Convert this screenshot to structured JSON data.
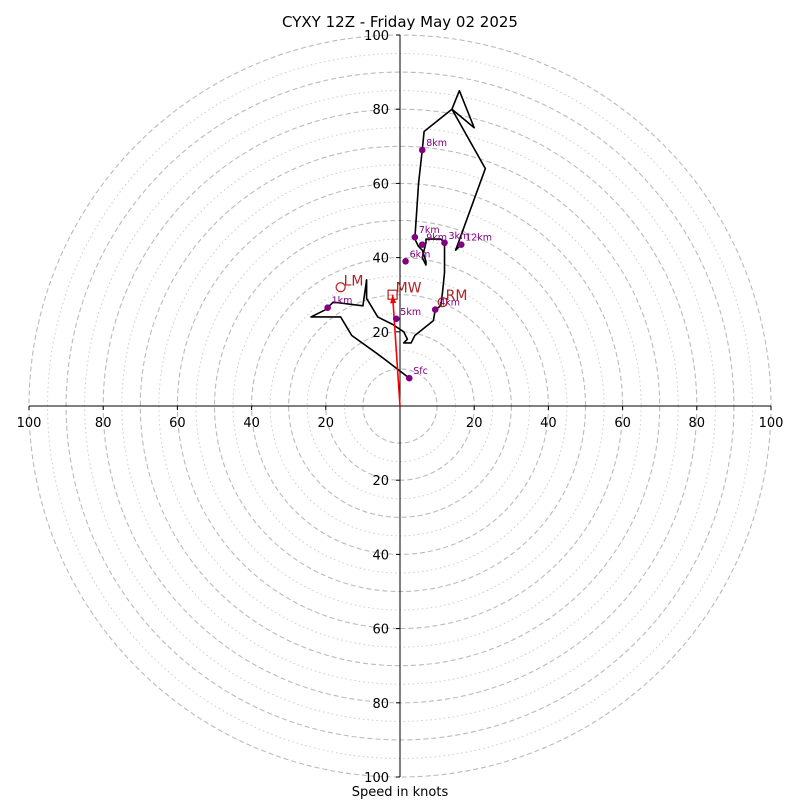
{
  "chart_data": {
    "type": "hodograph",
    "title": "CYXY 12Z - Friday May 02 2025",
    "xlabel": "Speed in knots",
    "range_max": 100,
    "dashed_ring_speeds": [
      10,
      20,
      30,
      40,
      50,
      60,
      70,
      80,
      90,
      100
    ],
    "dotted_ring_speeds": [
      15,
      25,
      35,
      45,
      55,
      65,
      75,
      85,
      95
    ],
    "x_tick_labels": [
      "100",
      "80",
      "60",
      "40",
      "20",
      "20",
      "40",
      "60",
      "80",
      "100"
    ],
    "x_tick_values": [
      -100,
      -80,
      -60,
      -40,
      -20,
      20,
      40,
      60,
      80,
      100
    ],
    "y_tick_labels": [
      "100",
      "80",
      "60",
      "40",
      "20",
      "20",
      "40",
      "60",
      "80",
      "100"
    ],
    "y_tick_values": [
      100,
      80,
      60,
      40,
      20,
      -20,
      -40,
      -60,
      -80,
      -100
    ],
    "units": "knots",
    "hodograph_trace": [
      [
        2.5,
        7.5
      ],
      [
        -6,
        14
      ],
      [
        -13,
        19
      ],
      [
        -16,
        24
      ],
      [
        -24,
        24
      ],
      [
        -20,
        26
      ],
      [
        -18,
        28
      ],
      [
        -10,
        27
      ],
      [
        -9,
        34
      ],
      [
        -9,
        29
      ],
      [
        -6,
        24
      ],
      [
        -2,
        22
      ],
      [
        1,
        20
      ],
      [
        2,
        18
      ],
      [
        1,
        17
      ],
      [
        3,
        17
      ],
      [
        4,
        19
      ],
      [
        9,
        23
      ],
      [
        9.5,
        26
      ],
      [
        11,
        27
      ],
      [
        11.5,
        31
      ],
      [
        12,
        36
      ],
      [
        12,
        44
      ],
      [
        11,
        45
      ],
      [
        8,
        45
      ],
      [
        7,
        45
      ],
      [
        7,
        44
      ],
      [
        6,
        40
      ],
      [
        7,
        38
      ],
      [
        7,
        39
      ],
      [
        6,
        42
      ],
      [
        5,
        43
      ],
      [
        4,
        45
      ],
      [
        5,
        60
      ],
      [
        6,
        69
      ],
      [
        6.5,
        74
      ],
      [
        6.5,
        74
      ],
      [
        14,
        80
      ],
      [
        16,
        85
      ],
      [
        20,
        75
      ],
      [
        14,
        80
      ],
      [
        23,
        64
      ],
      [
        15,
        42
      ],
      [
        17,
        44
      ]
    ],
    "height_markers": [
      {
        "label": "Sfc",
        "u": 2.5,
        "v": 7.5
      },
      {
        "label": "1km",
        "u": -19.5,
        "v": 26.5
      },
      {
        "label": "3km",
        "u": 12,
        "v": 44
      },
      {
        "label": "4km",
        "u": 9.5,
        "v": 26
      },
      {
        "label": "5km",
        "u": -1,
        "v": 23.5
      },
      {
        "label": "6km",
        "u": 1.5,
        "v": 39
      },
      {
        "label": "7km",
        "u": 4,
        "v": 45.5
      },
      {
        "label": "8km",
        "u": 6,
        "v": 69
      },
      {
        "label": "9km",
        "u": 6,
        "v": 43.5
      },
      {
        "label": "12km",
        "u": 16.5,
        "v": 43.5
      }
    ],
    "storm_motion_vector": {
      "from": [
        0,
        0
      ],
      "to": [
        -2,
        30
      ]
    },
    "storm_motions": [
      {
        "label": "LM",
        "symbol": "circle",
        "u": -16,
        "v": 32
      },
      {
        "label": "MW",
        "symbol": "square",
        "u": -2,
        "v": 30
      },
      {
        "label": "RM",
        "symbol": "circle",
        "u": 11.5,
        "v": 28
      }
    ],
    "colors": {
      "trace": "#000000",
      "markers": "#800080",
      "storm_motion": "#b22222",
      "vector": "#ff0000",
      "rings": "#bbbbbb"
    }
  }
}
